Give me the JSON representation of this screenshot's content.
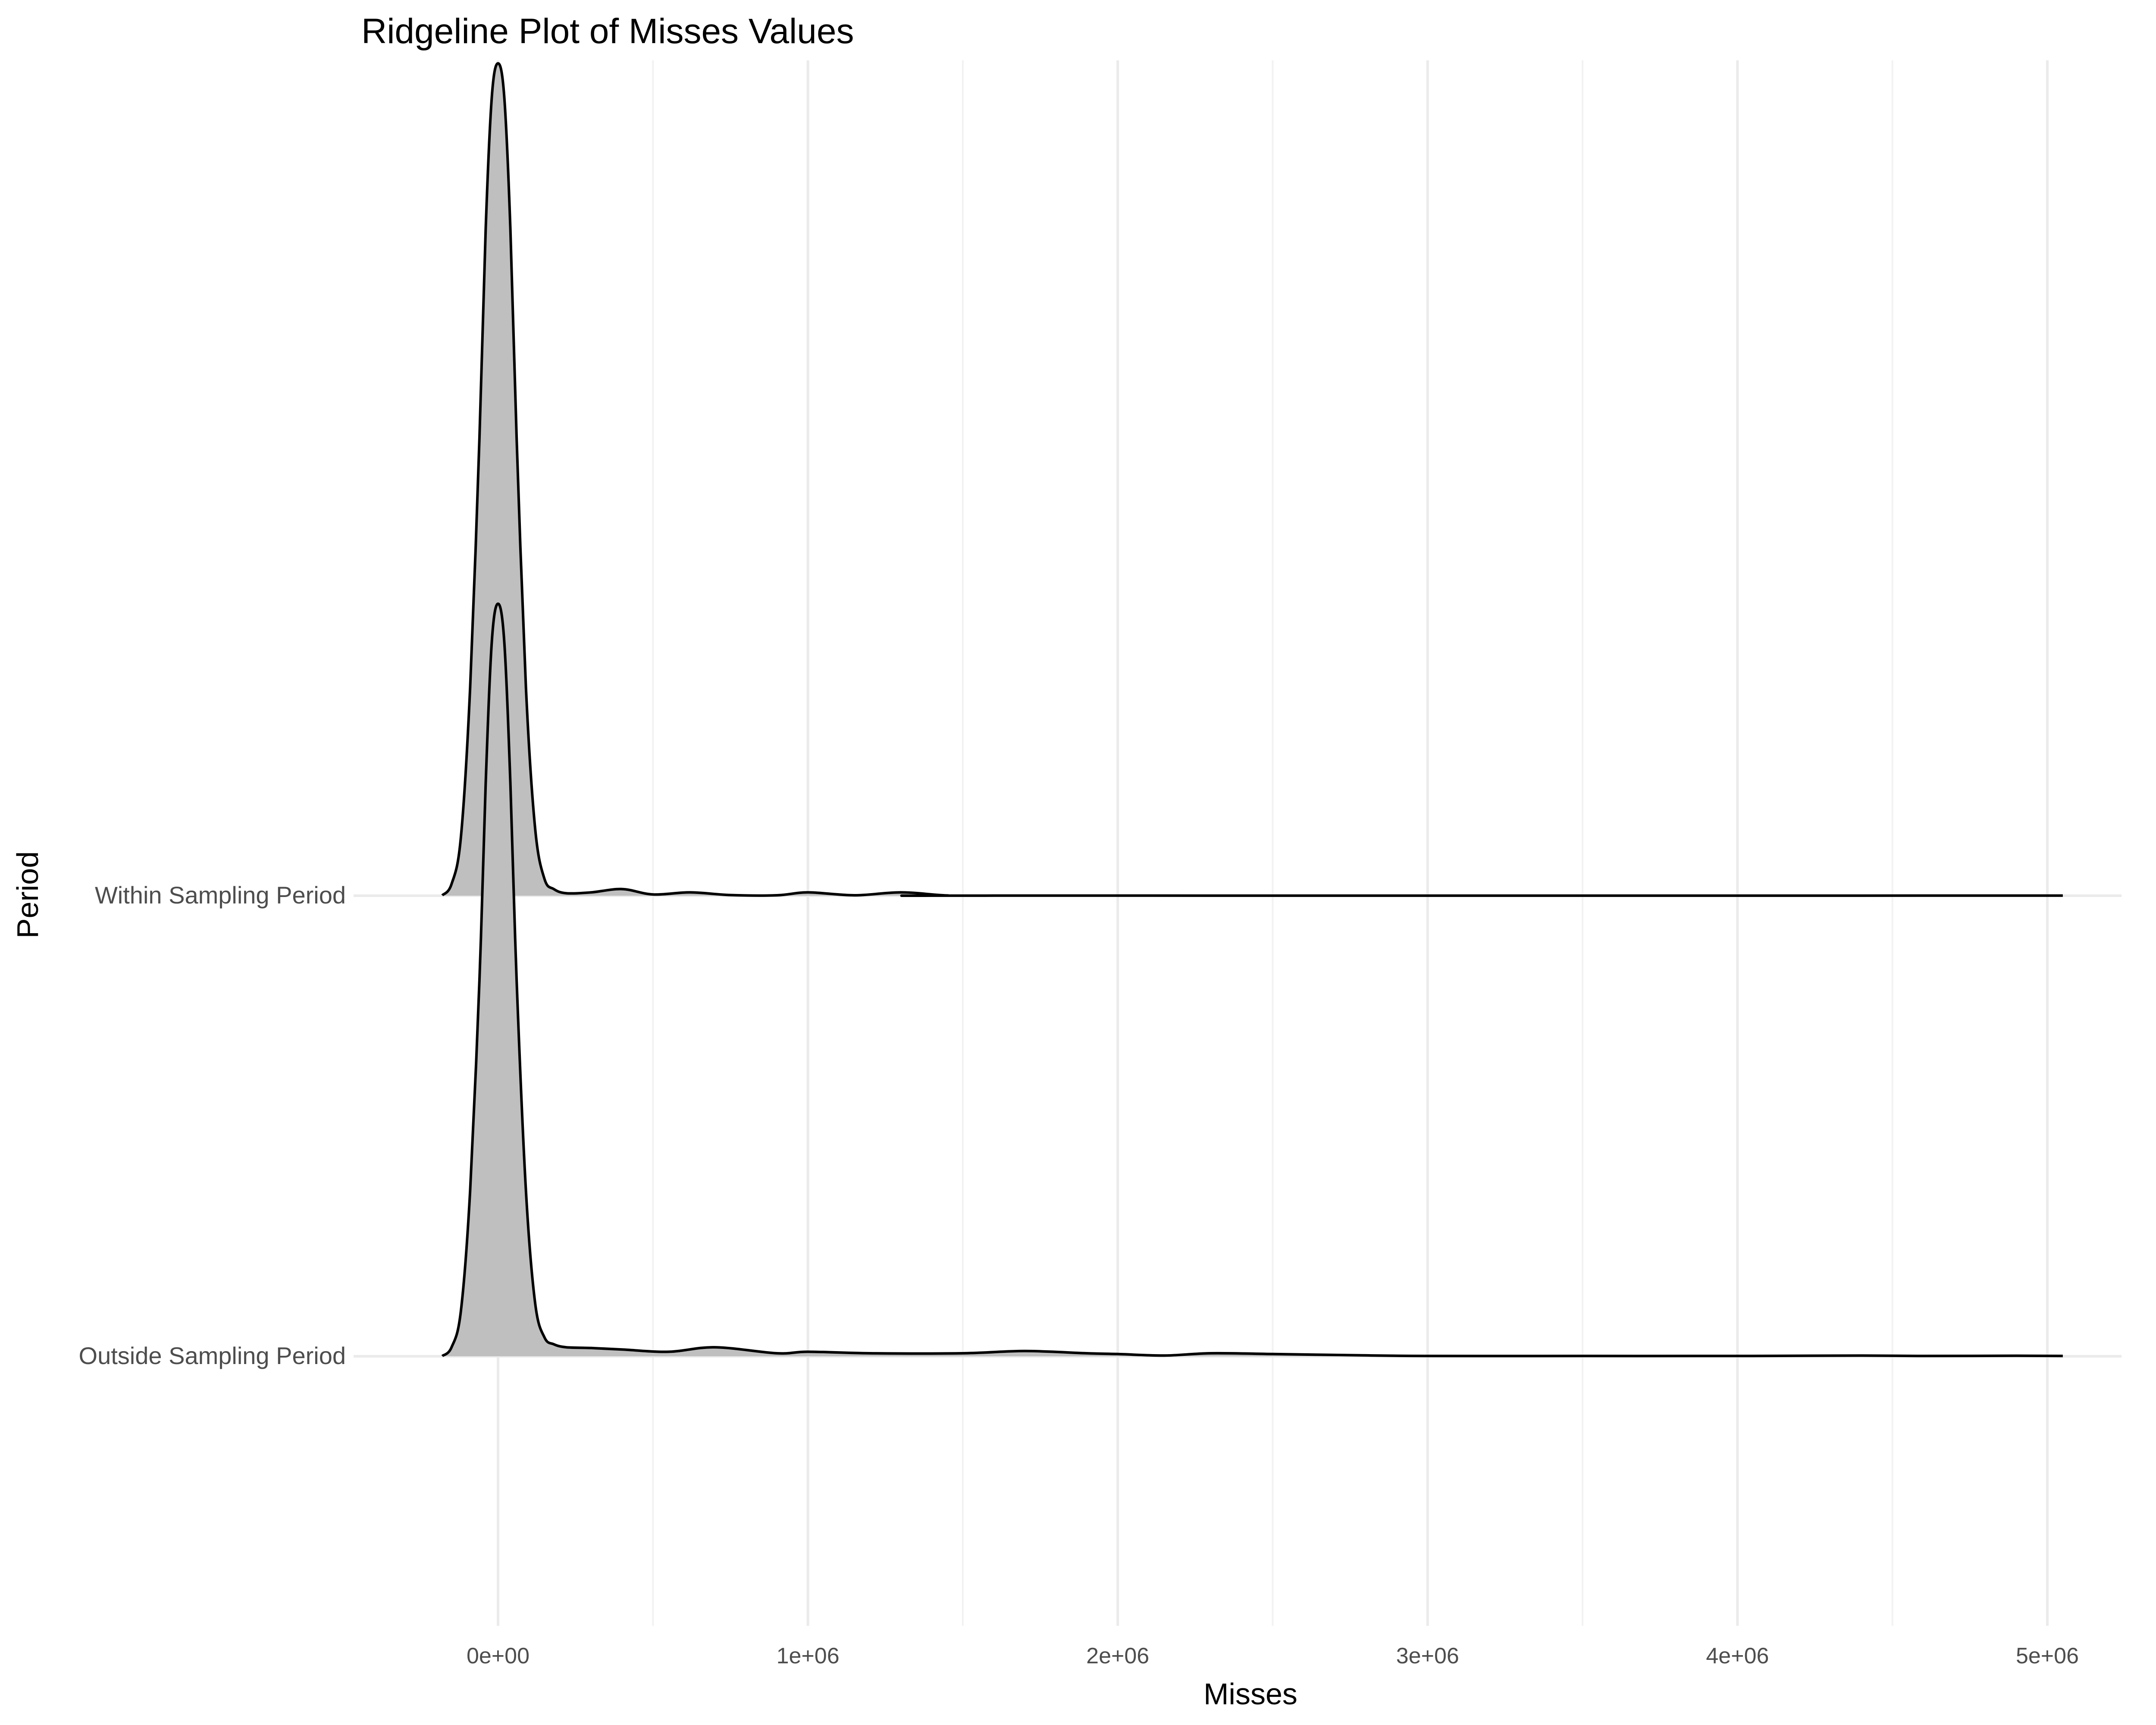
{
  "chart_data": {
    "type": "ridgeline",
    "title": "Ridgeline Plot of Misses Values",
    "xlabel": "Misses",
    "ylabel": "Period",
    "xlim": [
      -280000,
      5250000
    ],
    "x_ticks": [
      0,
      1000000,
      2000000,
      3000000,
      4000000,
      5000000
    ],
    "x_tick_labels": [
      "0e+00",
      "1e+06",
      "2e+06",
      "3e+06",
      "4e+06",
      "5e+06"
    ],
    "x_minor_ticks": [
      500000,
      1500000,
      2500000,
      3500000,
      4500000
    ],
    "categories": [
      "Within Sampling Period",
      "Outside Sampling Period"
    ],
    "grid": true,
    "legend": "none",
    "fill_color": "#bfbfbf",
    "line_color": "#000000",
    "series": [
      {
        "name": "Within Sampling Period",
        "x": [
          -180000,
          -150000,
          -120000,
          -90000,
          -60000,
          -40000,
          -20000,
          0,
          20000,
          40000,
          60000,
          90000,
          120000,
          150000,
          180000,
          220000,
          300000,
          400000,
          500000,
          620000,
          750000,
          900000,
          1000000,
          1150000,
          1300000,
          1450000,
          1600000,
          5050000
        ],
        "y": [
          0.0004,
          0.014,
          0.07,
          0.25,
          0.55,
          0.8,
          0.96,
          1.0,
          0.96,
          0.8,
          0.55,
          0.25,
          0.08,
          0.02,
          0.008,
          0.003,
          0.004,
          0.008,
          0.0015,
          0.004,
          0.0008,
          0.0005,
          0.004,
          0.0005,
          0.004,
          0.0003,
          0.0001,
          0.0001
        ]
      },
      {
        "name": "Outside Sampling Period",
        "x": [
          -180000,
          -150000,
          -120000,
          -90000,
          -60000,
          -40000,
          -20000,
          0,
          20000,
          40000,
          60000,
          90000,
          120000,
          150000,
          180000,
          220000,
          300000,
          400000,
          550000,
          700000,
          900000,
          1000000,
          1200000,
          1500000,
          1700000,
          1900000,
          2000000,
          2150000,
          2300000,
          2500000,
          2750000,
          3000000,
          3500000,
          4000000,
          4400000,
          4600000,
          4900000,
          5050000
        ],
        "y": [
          0.0003,
          0.012,
          0.06,
          0.22,
          0.5,
          0.76,
          0.95,
          1.0,
          0.95,
          0.76,
          0.5,
          0.22,
          0.07,
          0.025,
          0.016,
          0.012,
          0.011,
          0.009,
          0.006,
          0.012,
          0.004,
          0.006,
          0.004,
          0.004,
          0.007,
          0.004,
          0.003,
          0.001,
          0.004,
          0.003,
          0.0015,
          0.0004,
          0.0004,
          0.0004,
          0.0009,
          0.0004,
          0.0007,
          0.0004
        ]
      }
    ]
  }
}
